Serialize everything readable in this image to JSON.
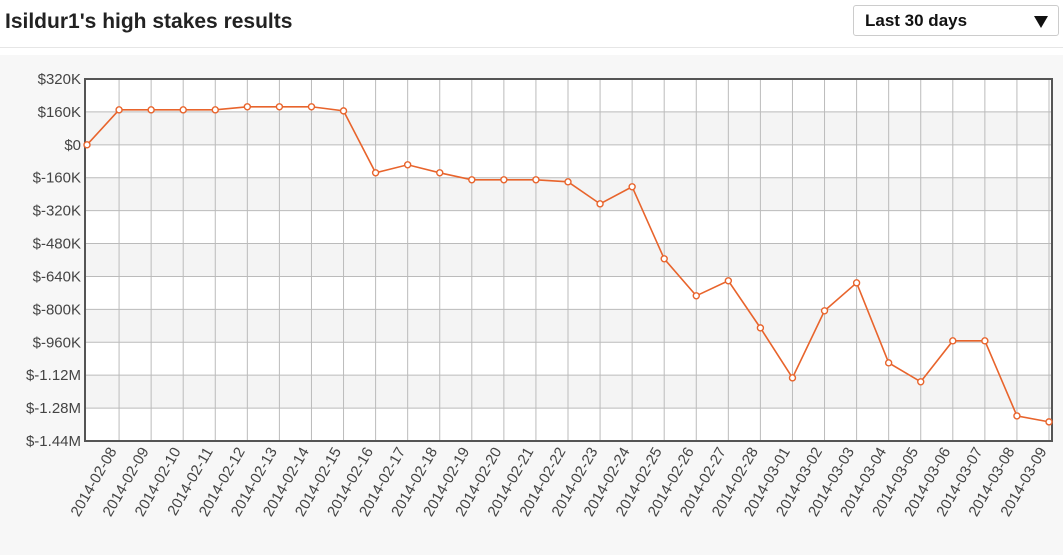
{
  "controls": {
    "period": "Last 30 days"
  },
  "chart_data": {
    "type": "line",
    "title": "Isildur1's high stakes results",
    "categories": [
      null,
      "2014-02-08",
      "2014-02-09",
      "2014-02-10",
      "2014-02-11",
      "2014-02-12",
      "2014-02-13",
      "2014-02-14",
      "2014-02-15",
      "2014-02-16",
      "2014-02-17",
      "2014-02-18",
      "2014-02-19",
      "2014-02-20",
      "2014-02-21",
      "2014-02-22",
      "2014-02-23",
      "2014-02-24",
      "2014-02-25",
      "2014-02-26",
      "2014-02-27",
      "2014-02-28",
      "2014-03-01",
      "2014-03-02",
      "2014-03-03",
      "2014-03-04",
      "2014-03-05",
      "2014-03-06",
      "2014-03-07",
      "2014-03-08",
      "2014-03-09"
    ],
    "values": [
      0,
      170000,
      170000,
      170000,
      170000,
      185000,
      185000,
      185000,
      165000,
      -136000,
      -97000,
      -136000,
      -170000,
      -170000,
      -170000,
      -180000,
      -287000,
      -204000,
      -554000,
      -734000,
      -661000,
      -890000,
      -1133000,
      -807000,
      -671000,
      -1060000,
      -1152000,
      -953000,
      -953000,
      -1318000,
      -1347000
    ],
    "color": "#e8642c",
    "ylim": [
      -1440000,
      320000
    ],
    "yticks": [
      {
        "value": 320000,
        "label": "$320K"
      },
      {
        "value": 160000,
        "label": "$160K"
      },
      {
        "value": 0,
        "label": "$0"
      },
      {
        "value": -160000,
        "label": "$-160K"
      },
      {
        "value": -320000,
        "label": "$-320K"
      },
      {
        "value": -480000,
        "label": "$-480K"
      },
      {
        "value": -640000,
        "label": "$-640K"
      },
      {
        "value": -800000,
        "label": "$-800K"
      },
      {
        "value": -960000,
        "label": "$-960K"
      },
      {
        "value": -1120000,
        "label": "$-1.12M"
      },
      {
        "value": -1280000,
        "label": "$-1.28M"
      },
      {
        "value": -1440000,
        "label": "$-1.44M"
      }
    ],
    "grid": true
  }
}
